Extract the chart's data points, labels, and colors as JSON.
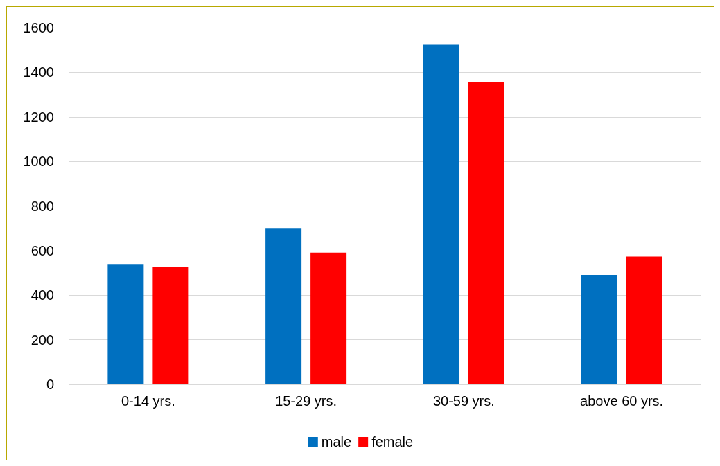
{
  "chart_data": {
    "type": "bar",
    "categories": [
      "0-14 yrs.",
      "15-29 yrs.",
      "30-59 yrs.",
      "above 60 yrs."
    ],
    "series": [
      {
        "name": "male",
        "color": "#0070c0",
        "values": [
          540,
          698,
          1524,
          491
        ]
      },
      {
        "name": "female",
        "color": "#ff0000",
        "values": [
          527,
          591,
          1357,
          573
        ]
      }
    ],
    "ylim": [
      0,
      1600
    ],
    "yticks": [
      0,
      200,
      400,
      600,
      800,
      1000,
      1200,
      1400,
      1600
    ],
    "grid": "y",
    "legend": "bottom"
  }
}
